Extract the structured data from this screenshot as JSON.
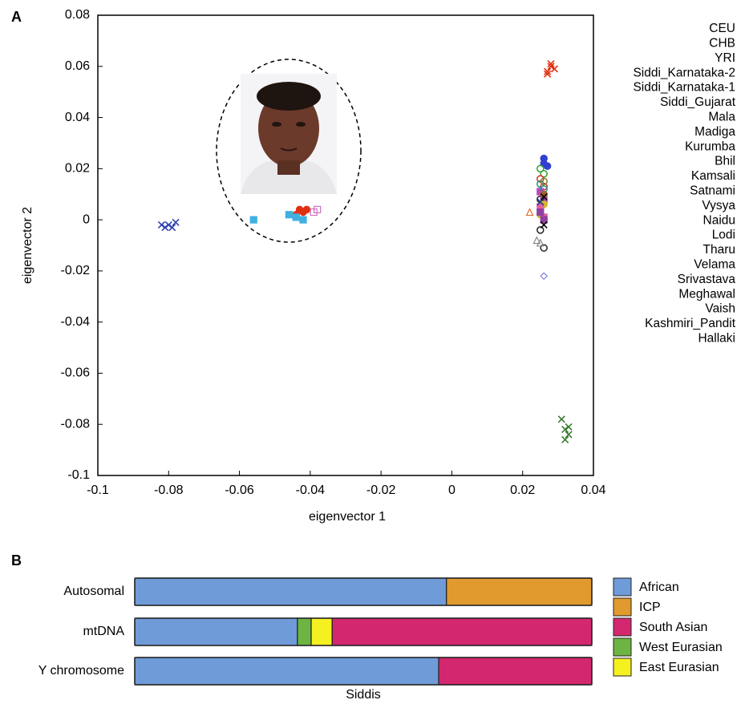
{
  "chart_data": [
    {
      "type": "scatter",
      "panel_label": "A",
      "xlabel": "eigenvector 1",
      "ylabel": "eigenvector 2",
      "xlim": [
        -0.1,
        0.04
      ],
      "ylim": [
        -0.1,
        0.08
      ],
      "xticks": [
        -0.1,
        -0.08,
        -0.06,
        -0.04,
        -0.02,
        0,
        0.02,
        0.04
      ],
      "yticks": [
        -0.1,
        -0.08,
        -0.06,
        -0.04,
        -0.02,
        0,
        0.02,
        0.04,
        0.06,
        0.08
      ],
      "legend_position": "right",
      "series": [
        {
          "name": "CEU",
          "color": "#e03010",
          "marker": "x",
          "x": [
            0.027,
            0.028,
            0.028,
            0.029,
            0.027
          ],
          "values": [
            0.058,
            0.06,
            0.061,
            0.059,
            0.057
          ]
        },
        {
          "name": "CHB",
          "color": "#3a7a30",
          "marker": "x",
          "x": [
            0.031,
            0.032,
            0.033,
            0.032,
            0.033
          ],
          "values": [
            -0.078,
            -0.082,
            -0.084,
            -0.086,
            -0.081
          ]
        },
        {
          "name": "YRI",
          "color": "#3040b0",
          "marker": "x",
          "x": [
            -0.082,
            -0.081,
            -0.08,
            -0.079,
            -0.078
          ],
          "values": [
            -0.002,
            -0.003,
            -0.002,
            -0.003,
            -0.001
          ]
        },
        {
          "name": "Siddi_Karnataka-2",
          "color": "#e03010",
          "marker": "o",
          "x": [
            -0.044,
            -0.043,
            -0.042,
            -0.041
          ],
          "values": [
            0.002,
            0.004,
            0.003,
            0.004
          ]
        },
        {
          "name": "Siddi_Karnataka-1",
          "color": "#40b0e0",
          "marker": "s",
          "x": [
            -0.056,
            -0.046,
            -0.044,
            -0.042
          ],
          "values": [
            0,
            0.002,
            0.001,
            0
          ]
        },
        {
          "name": "Siddi_Gujarat",
          "color": "#d070c0",
          "marker": "s-open",
          "x": [
            -0.039,
            -0.038
          ],
          "values": [
            0.003,
            0.004
          ]
        },
        {
          "name": "Mala",
          "color": "#3040d0",
          "marker": "o",
          "x": [
            0.026,
            0.026,
            0.027
          ],
          "values": [
            0.024,
            0.022,
            0.021
          ]
        },
        {
          "name": "Madiga",
          "color": "#30a030",
          "marker": "o-open",
          "x": [
            0.025,
            0.026
          ],
          "values": [
            0.02,
            0.018
          ]
        },
        {
          "name": "Kurumba",
          "color": "#e07030",
          "marker": "^",
          "x": [
            0.022,
            0.025
          ],
          "values": [
            0.003,
            0.004
          ]
        },
        {
          "name": "Bhil",
          "color": "#d03020",
          "marker": "o-open",
          "x": [
            0.025,
            0.026
          ],
          "values": [
            0.016,
            0.013
          ]
        },
        {
          "name": "Kamsali",
          "color": "#c040c0",
          "marker": "s",
          "x": [
            0.025,
            0.026
          ],
          "values": [
            0.011,
            0.008
          ]
        },
        {
          "name": "Satnami",
          "color": "#222222",
          "marker": "o-open",
          "x": [
            0.025,
            0.025,
            0.026
          ],
          "values": [
            0.008,
            -0.004,
            -0.011
          ]
        },
        {
          "name": "Vysya",
          "color": "#888888",
          "marker": "^",
          "x": [
            0.024,
            0.025
          ],
          "values": [
            -0.008,
            -0.009
          ]
        },
        {
          "name": "Naidu",
          "color": "#8080e0",
          "marker": "d",
          "x": [
            0.026
          ],
          "values": [
            -0.022
          ]
        },
        {
          "name": "Lodi",
          "color": "#d0c020",
          "marker": "o",
          "x": [
            0.026,
            0.025
          ],
          "values": [
            0.006,
            0.002
          ]
        },
        {
          "name": "Tharu",
          "color": "#209090",
          "marker": "o-open",
          "x": [
            0.025,
            0.026
          ],
          "values": [
            0.014,
            0.012
          ]
        },
        {
          "name": "Velama",
          "color": "#e060a0",
          "marker": "s",
          "x": [
            0.025,
            0.026
          ],
          "values": [
            0.005,
            0.001
          ]
        },
        {
          "name": "Srivastava",
          "color": "#a06030",
          "marker": "o",
          "x": [
            0.026
          ],
          "values": [
            0.01
          ]
        },
        {
          "name": "Meghawal",
          "color": "#204080",
          "marker": "x",
          "x": [
            0.025
          ],
          "values": [
            0.007
          ]
        },
        {
          "name": "Vaish",
          "color": "#9040a0",
          "marker": "s",
          "x": [
            0.026,
            0.025
          ],
          "values": [
            0.0,
            0.003
          ]
        },
        {
          "name": "Kashmiri_Pandit",
          "color": "#808020",
          "marker": "o-open",
          "x": [
            0.026
          ],
          "values": [
            0.015
          ]
        },
        {
          "name": "Hallaki",
          "color": "#000000",
          "marker": "x",
          "x": [
            0.026,
            0.026
          ],
          "values": [
            0.009,
            -0.002
          ]
        }
      ]
    },
    {
      "type": "stacked-barh",
      "panel_label": "B",
      "xlabel": "Siddis",
      "xlim": [
        0,
        100
      ],
      "categories": [
        "Autosomal",
        "mtDNA",
        "Y chromosome"
      ],
      "legend_position": "right",
      "series": [
        {
          "name": "African",
          "color": "#6f9bd8",
          "values": [
            68.2,
            35.6,
            66.5
          ]
        },
        {
          "name": "ICP",
          "color": "#e09a2e",
          "values": [
            31.8,
            0,
            0
          ]
        },
        {
          "name": "West Eurasian",
          "color": "#6db442",
          "values": [
            0,
            3.0,
            0
          ]
        },
        {
          "name": "East Eurasian",
          "color": "#f5f020",
          "values": [
            0,
            4.6,
            0
          ]
        },
        {
          "name": "South Asian",
          "color": "#d3286f",
          "values": [
            0,
            56.8,
            33.5
          ]
        }
      ]
    }
  ]
}
